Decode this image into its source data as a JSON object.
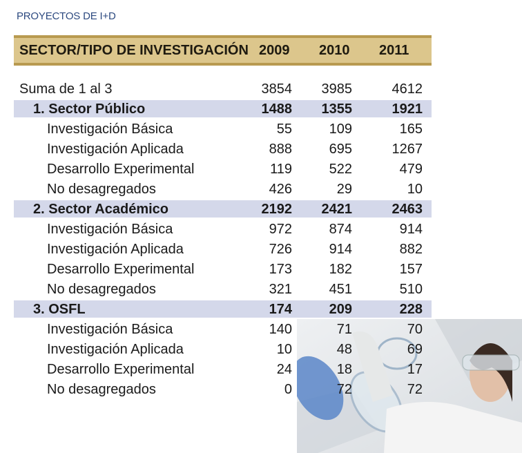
{
  "title": "PROYECTOS DE I+D",
  "header": {
    "label": "SECTOR/TIPO DE INVESTIGACIÓN",
    "years": [
      "2009",
      "2010",
      "2011"
    ]
  },
  "colors": {
    "header_band": "#dcc68c",
    "header_border": "#b89a50",
    "sector_band": "#d4d8ea",
    "title": "#2d4a80"
  },
  "rows": [
    {
      "type": "total",
      "label": "Suma de 1 al 3",
      "values": [
        "3854",
        "3985",
        "4612"
      ]
    },
    {
      "type": "sector",
      "label": "1. Sector Público",
      "values": [
        "1488",
        "1355",
        "1921"
      ]
    },
    {
      "type": "sub",
      "label": "Investigación Básica",
      "values": [
        "55",
        "109",
        "165"
      ]
    },
    {
      "type": "sub",
      "label": "Investigación Aplicada",
      "values": [
        "888",
        "695",
        "1267"
      ]
    },
    {
      "type": "sub",
      "label": "Desarrollo Experimental",
      "values": [
        "119",
        "522",
        "479"
      ]
    },
    {
      "type": "sub",
      "label": "No desagregados",
      "values": [
        "426",
        "29",
        "10"
      ]
    },
    {
      "type": "sector",
      "label": "2. Sector Académico",
      "values": [
        "2192",
        "2421",
        "2463"
      ]
    },
    {
      "type": "sub",
      "label": "Investigación Básica",
      "values": [
        "972",
        "874",
        "914"
      ]
    },
    {
      "type": "sub",
      "label": "Investigación Aplicada",
      "values": [
        "726",
        "914",
        "882"
      ]
    },
    {
      "type": "sub",
      "label": "Desarrollo Experimental",
      "values": [
        "173",
        "182",
        "157"
      ]
    },
    {
      "type": "sub",
      "label": "No desagregados",
      "values": [
        "321",
        "451",
        "510"
      ]
    },
    {
      "type": "sector",
      "label": "3. OSFL",
      "values": [
        "174",
        "209",
        "228"
      ]
    },
    {
      "type": "sub",
      "label": "Investigación Básica",
      "values": [
        "140",
        "71",
        "70"
      ]
    },
    {
      "type": "sub",
      "label": "Investigación Aplicada",
      "values": [
        "10",
        "48",
        "69"
      ]
    },
    {
      "type": "sub",
      "label": "Desarrollo Experimental",
      "values": [
        "24",
        "18",
        "17"
      ]
    },
    {
      "type": "sub",
      "label": "No desagregados",
      "values": [
        "0",
        "72",
        "72"
      ]
    }
  ]
}
